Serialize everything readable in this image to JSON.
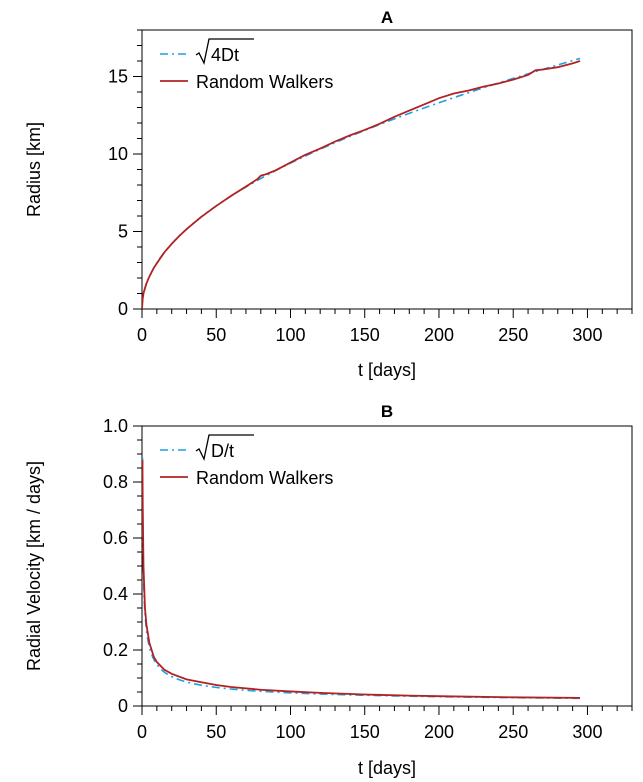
{
  "chart_data": [
    {
      "type": "line",
      "title": "A",
      "xlabel": "t [days]",
      "ylabel": "Radius [km]",
      "xlim": [
        0,
        330
      ],
      "ylim": [
        0,
        18
      ],
      "xticks": [
        0,
        50,
        100,
        150,
        200,
        250,
        300
      ],
      "yticks": [
        0,
        5,
        10,
        15
      ],
      "legend_position": "top-left",
      "series": [
        {
          "name": "√4Dt",
          "legend_text": "4Dt",
          "style": "dash-dot",
          "color": "#1f9fe0",
          "formula": "sqrt",
          "coefficient": 0.941,
          "x_end": 295
        },
        {
          "name": "Random Walkers",
          "legend_text": "Random Walkers",
          "style": "solid",
          "color": "#b22222",
          "x": [
            0,
            0.5,
            1,
            2,
            3,
            5,
            8,
            10,
            15,
            20,
            25,
            30,
            35,
            40,
            50,
            60,
            70,
            78,
            80,
            82,
            85,
            90,
            100,
            110,
            120,
            130,
            140,
            150,
            160,
            170,
            180,
            190,
            200,
            210,
            220,
            230,
            240,
            250,
            260,
            265,
            270,
            280,
            290,
            295
          ],
          "y": [
            0,
            0.7,
            1.0,
            1.35,
            1.65,
            2.1,
            2.66,
            2.95,
            3.65,
            4.2,
            4.7,
            5.15,
            5.55,
            5.95,
            6.65,
            7.3,
            7.9,
            8.4,
            8.6,
            8.65,
            8.75,
            8.95,
            9.45,
            9.95,
            10.35,
            10.8,
            11.2,
            11.55,
            11.95,
            12.4,
            12.8,
            13.2,
            13.6,
            13.9,
            14.1,
            14.35,
            14.55,
            14.8,
            15.1,
            15.4,
            15.45,
            15.6,
            15.85,
            16.0
          ]
        }
      ]
    },
    {
      "type": "line",
      "title": "B",
      "xlabel": "t [days]",
      "ylabel": "Radial Velocity [km / days]",
      "xlim": [
        0,
        330
      ],
      "ylim": [
        0,
        1.0
      ],
      "xticks": [
        0,
        50,
        100,
        150,
        200,
        250,
        300
      ],
      "yticks": [
        0,
        0.2,
        0.4,
        0.6,
        0.8,
        1.0
      ],
      "ytick_labels": [
        "0",
        "0.2",
        "0.4",
        "0.6",
        "0.8",
        "1.0"
      ],
      "legend_position": "top-left",
      "series": [
        {
          "name": "√D/t",
          "legend_text": "D/t",
          "style": "dash-dot",
          "color": "#1f9fe0",
          "formula": "inv_sqrt",
          "coefficient": 0.47,
          "x_start": 0.28,
          "x_end": 295
        },
        {
          "name": "Random Walkers",
          "legend_text": "Random Walkers",
          "style": "solid",
          "color": "#b22222",
          "x": [
            0.3,
            0.5,
            1,
            2,
            3,
            5,
            8,
            10,
            15,
            20,
            30,
            40,
            50,
            60,
            80,
            100,
            120,
            150,
            180,
            200,
            250,
            295
          ],
          "y": [
            0.88,
            0.72,
            0.5,
            0.35,
            0.29,
            0.225,
            0.175,
            0.157,
            0.13,
            0.115,
            0.095,
            0.085,
            0.075,
            0.068,
            0.058,
            0.052,
            0.047,
            0.041,
            0.037,
            0.035,
            0.031,
            0.029
          ]
        }
      ]
    }
  ]
}
